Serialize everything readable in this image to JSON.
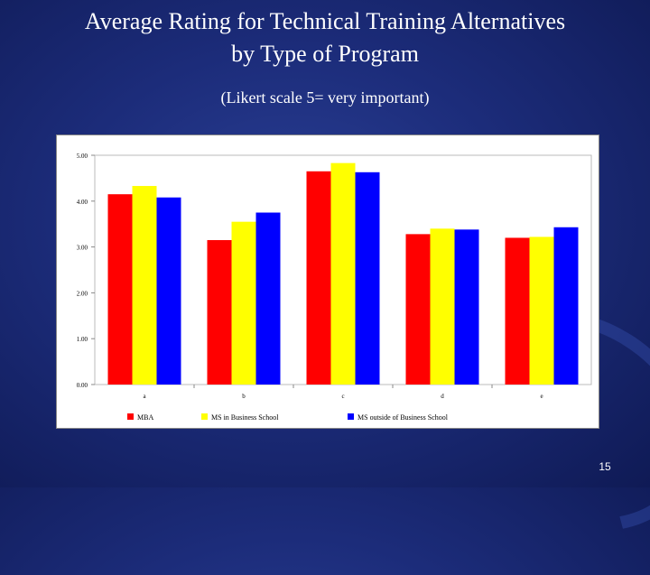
{
  "slide": {
    "title_line1": "Average Rating for Technical Training Alternatives",
    "title_line2": "by Type of Program",
    "subtitle": "(Likert scale 5= very important)",
    "page_number": "15"
  },
  "chart_data": {
    "type": "bar",
    "categories": [
      "a",
      "b",
      "c",
      "d",
      "e"
    ],
    "series": [
      {
        "name": "MBA",
        "color": "#ff0000",
        "values": [
          4.15,
          3.15,
          4.65,
          3.28,
          3.2
        ]
      },
      {
        "name": "MS in Business School",
        "color": "#ffff00",
        "values": [
          4.33,
          3.55,
          4.83,
          3.4,
          3.22
        ]
      },
      {
        "name": "MS outside of Business School",
        "color": "#0000ff",
        "values": [
          4.08,
          3.75,
          4.63,
          3.38,
          3.43
        ]
      }
    ],
    "ylim": [
      0,
      5
    ],
    "yticks": [
      "0.00",
      "1.00",
      "2.00",
      "3.00",
      "4.00",
      "5.00"
    ],
    "ytick_values": [
      0,
      1,
      2,
      3,
      4,
      5
    ],
    "grid": false,
    "legend_position": "bottom",
    "xlabel": "",
    "ylabel": ""
  }
}
